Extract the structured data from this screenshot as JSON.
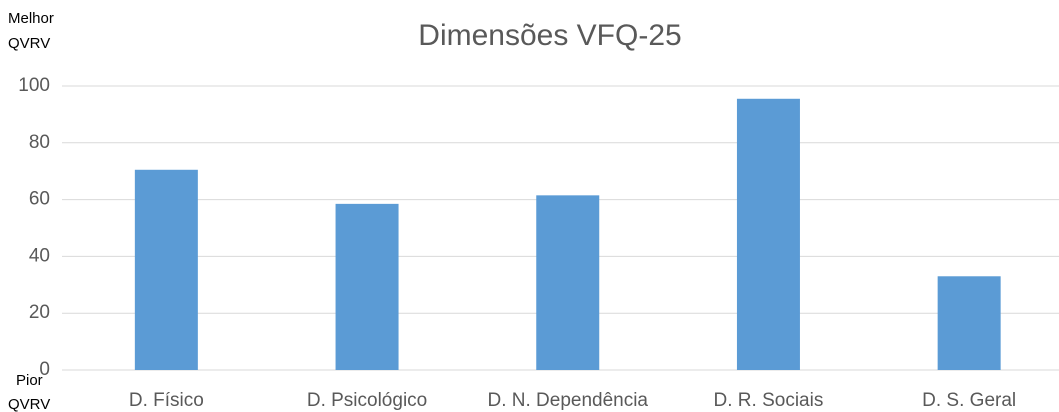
{
  "chart_data": {
    "type": "bar",
    "title": "Dimensões VFQ-25",
    "top_label": [
      "Melhor",
      "QVRV"
    ],
    "bottom_label": [
      "Pior",
      "QVRV"
    ],
    "categories": [
      "D. Físico",
      "D. Psicológico",
      "D. N. Dependência",
      "D. R. Sociais",
      "D. S. Geral"
    ],
    "values": [
      70.5,
      58.5,
      61.5,
      95.5,
      33
    ],
    "color": "#5b9bd5",
    "ylim": [
      0,
      100
    ],
    "yticks": [
      0,
      20,
      40,
      60,
      80,
      100
    ],
    "grid": true
  }
}
